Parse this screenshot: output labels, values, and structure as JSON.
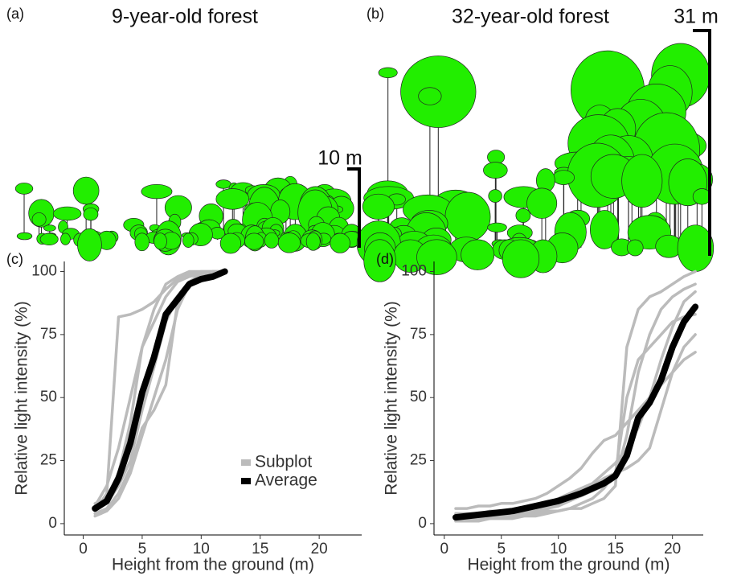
{
  "illustrations": [
    {
      "label": "(a)",
      "title": "9-year-old forest",
      "scale_label": "10 m"
    },
    {
      "label": "(b)",
      "title": "32-year-old forest",
      "scale_label": "31 m"
    }
  ],
  "chart_data": [
    {
      "type": "line",
      "label": "(c)",
      "xlabel": "Height from the ground (m)",
      "ylabel": "Relative light intensity (%)",
      "xlim": [
        -1.6,
        23.6
      ],
      "ylim": [
        -4.5,
        104
      ],
      "xticks": [
        0,
        5,
        10,
        15,
        20
      ],
      "yticks": [
        0,
        25,
        50,
        75,
        100
      ],
      "legend": "lower right",
      "x": [
        1,
        2,
        3,
        4,
        5,
        6,
        7,
        8,
        9,
        10,
        11,
        12
      ],
      "series": [
        {
          "name": "Subplot",
          "color": "#bbbbbb",
          "values": [
            5,
            12,
            82,
            83,
            85,
            88,
            93,
            97,
            99,
            100,
            100,
            100
          ]
        },
        {
          "name": "Subplot",
          "color": "#bbbbbb",
          "values": [
            8,
            10,
            20,
            40,
            70,
            85,
            95,
            98,
            100,
            100,
            100,
            100
          ]
        },
        {
          "name": "Subplot",
          "color": "#bbbbbb",
          "values": [
            3,
            5,
            10,
            20,
            35,
            50,
            65,
            85,
            95,
            98,
            100,
            100
          ]
        },
        {
          "name": "Subplot",
          "color": "#bbbbbb",
          "values": [
            6,
            8,
            15,
            25,
            45,
            62,
            80,
            90,
            95,
            98,
            99,
            100
          ]
        },
        {
          "name": "Subplot",
          "color": "#bbbbbb",
          "values": [
            4,
            6,
            12,
            22,
            38,
            45,
            55,
            88,
            96,
            99,
            100,
            100
          ]
        },
        {
          "name": "Subplot",
          "color": "#bbbbbb",
          "values": [
            7,
            15,
            30,
            50,
            70,
            80,
            90,
            96,
            98,
            99,
            100,
            100
          ]
        },
        {
          "name": "Average",
          "color": "#000000",
          "values": [
            6,
            9,
            18,
            32,
            52,
            66,
            83,
            89,
            95,
            97,
            98,
            100
          ]
        }
      ]
    },
    {
      "type": "line",
      "label": "(d)",
      "xlabel": "Height from the ground (m)",
      "ylabel": "Relative light intensity (%)",
      "xlim": [
        -0.9,
        22.7
      ],
      "ylim": [
        -4.5,
        104
      ],
      "xticks": [
        0,
        5,
        10,
        15,
        20
      ],
      "yticks": [
        0,
        25,
        50,
        75,
        100
      ],
      "x": [
        1,
        2,
        3,
        4,
        5,
        6,
        7,
        8,
        9,
        10,
        11,
        12,
        13,
        14,
        15,
        16,
        17,
        18,
        19,
        20,
        21,
        22
      ],
      "series": [
        {
          "name": "Subplot",
          "color": "#bbbbbb",
          "values": [
            1,
            1,
            2,
            2,
            3,
            3,
            4,
            4,
            5,
            5,
            6,
            6,
            8,
            10,
            15,
            70,
            85,
            90,
            92,
            95,
            98,
            100
          ]
        },
        {
          "name": "Subplot",
          "color": "#bbbbbb",
          "values": [
            6,
            6,
            7,
            7,
            8,
            8,
            9,
            10,
            12,
            15,
            18,
            22,
            28,
            33,
            35,
            40,
            45,
            50,
            55,
            60,
            65,
            68
          ]
        },
        {
          "name": "Subplot",
          "color": "#bbbbbb",
          "values": [
            2,
            2,
            3,
            3,
            3,
            4,
            4,
            5,
            6,
            7,
            9,
            11,
            13,
            15,
            18,
            35,
            60,
            75,
            85,
            90,
            93,
            95
          ]
        },
        {
          "name": "Subplot",
          "color": "#bbbbbb",
          "values": [
            4,
            4,
            4,
            5,
            5,
            5,
            6,
            7,
            8,
            10,
            12,
            14,
            16,
            20,
            24,
            30,
            38,
            50,
            65,
            78,
            88,
            92
          ]
        },
        {
          "name": "Subplot",
          "color": "#bbbbbb",
          "values": [
            3,
            3,
            3,
            4,
            4,
            5,
            5,
            6,
            7,
            8,
            10,
            12,
            15,
            18,
            20,
            22,
            25,
            30,
            45,
            60,
            70,
            75
          ]
        },
        {
          "name": "Subplot",
          "color": "#bbbbbb",
          "values": [
            1,
            1,
            1,
            2,
            2,
            2,
            3,
            3,
            4,
            5,
            6,
            8,
            10,
            14,
            20,
            50,
            65,
            70,
            75,
            80,
            82,
            83
          ]
        },
        {
          "name": "Average",
          "color": "#000000",
          "values": [
            2.5,
            3,
            3.5,
            4,
            4.5,
            5,
            6,
            7,
            8,
            9,
            10.5,
            12,
            14,
            16,
            19,
            27,
            42,
            48,
            57,
            70,
            80,
            86
          ]
        }
      ]
    }
  ]
}
